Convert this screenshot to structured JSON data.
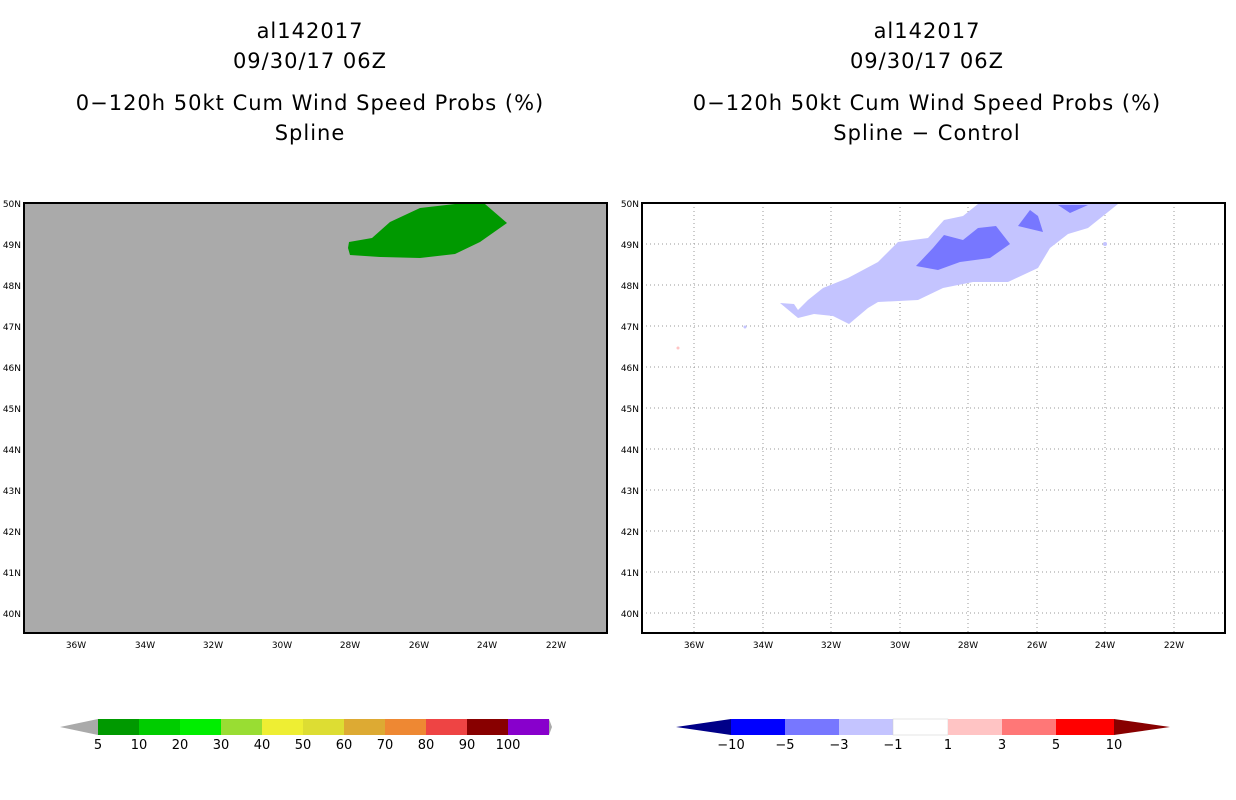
{
  "left_panel": {
    "title_line1": "al142017",
    "title_line2": "09/30/17 06Z",
    "title_line3": "0−120h 50kt Cum Wind Speed Probs (%)",
    "title_line4": "Spline",
    "lat_labels": [
      "50N",
      "49N",
      "48N",
      "47N",
      "46N",
      "45N",
      "44N",
      "43N",
      "42N",
      "41N",
      "40N"
    ],
    "lon_labels": [
      "36W",
      "34W",
      "32W",
      "30W",
      "28W",
      "26W",
      "24W",
      "22W"
    ],
    "background_color": "#aaaaaa",
    "contour_color": "#009900",
    "legend": {
      "labels": [
        "5",
        "10",
        "20",
        "30",
        "40",
        "50",
        "60",
        "70",
        "80",
        "90",
        "100"
      ],
      "colors": [
        "#009900",
        "#00cc00",
        "#00ee00",
        "#99dd33",
        "#eeee33",
        "#dddd33",
        "#ddaa33",
        "#ee8833",
        "#ee4444",
        "#880000",
        "#8800cc"
      ],
      "end_color": "#aaaaaa"
    }
  },
  "right_panel": {
    "title_line1": "al142017",
    "title_line2": "09/30/17 06Z",
    "title_line3": "0−120h 50kt Cum Wind Speed Probs (%)",
    "title_line4": "Spline − Control",
    "lat_labels": [
      "50N",
      "49N",
      "48N",
      "47N",
      "46N",
      "45N",
      "44N",
      "43N",
      "42N",
      "41N",
      "40N"
    ],
    "lon_labels": [
      "36W",
      "34W",
      "32W",
      "30W",
      "28W",
      "26W",
      "24W",
      "22W"
    ],
    "background_color": "#ffffff",
    "legend": {
      "labels": [
        "−10",
        "−5",
        "−3",
        "−1",
        "1",
        "3",
        "5",
        "10"
      ],
      "colors": [
        "#0000ff",
        "#7777ff",
        "#c4c4ff",
        "#ffffff",
        "#ffc4c4",
        "#ff7777",
        "#ff0000"
      ],
      "low_end_color": "#000088",
      "high_end_color": "#880000"
    }
  }
}
